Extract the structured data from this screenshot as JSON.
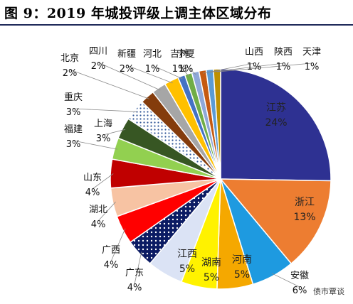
{
  "header": {
    "title": "图 9：2019 年城投评级上调主体区域分布"
  },
  "watermark": "债市覃谈",
  "chart_data": {
    "type": "pie",
    "title": "图 9：2019 年城投评级上调主体区域分布",
    "slices": [
      {
        "label": "江苏",
        "pct_text": "24%",
        "value": 24,
        "color": "#2e3192"
      },
      {
        "label": "浙江",
        "pct_text": "13%",
        "value": 13,
        "color": "#ed7d31"
      },
      {
        "label": "安徽",
        "pct_text": "6%",
        "value": 6,
        "color": "#1e9ae0"
      },
      {
        "label": "河南",
        "pct_text": "5%",
        "value": 5,
        "color": "#f5a800"
      },
      {
        "label": "湖南",
        "pct_text": "5%",
        "value": 5,
        "color": "#fff200"
      },
      {
        "label": "江西",
        "pct_text": "5%",
        "value": 5,
        "color": "#dbe3f5"
      },
      {
        "label": "广东",
        "pct_text": "4%",
        "value": 4,
        "color": "#0b1b63",
        "pattern": "dots"
      },
      {
        "label": "广西",
        "pct_text": "4%",
        "value": 4,
        "color": "#ff0000"
      },
      {
        "label": "湖北",
        "pct_text": "4%",
        "value": 4,
        "color": "#f7c3a3"
      },
      {
        "label": "山东",
        "pct_text": "4%",
        "value": 4,
        "color": "#c00000"
      },
      {
        "label": "福建",
        "pct_text": "3%",
        "value": 3,
        "color": "#92d050"
      },
      {
        "label": "上海",
        "pct_text": "3%",
        "value": 3,
        "color": "#375623"
      },
      {
        "label": "重庆",
        "pct_text": "3%",
        "value": 3,
        "color": "#ffffff",
        "pattern": "dots-blue"
      },
      {
        "label": "北京",
        "pct_text": "2%",
        "value": 2,
        "color": "#843c0c"
      },
      {
        "label": "四川",
        "pct_text": "2%",
        "value": 2,
        "color": "#a6a6a6"
      },
      {
        "label": "新疆",
        "pct_text": "2%",
        "value": 2,
        "color": "#ffc000"
      },
      {
        "label": "河北",
        "pct_text": "1%",
        "value": 1,
        "color": "#4472c4"
      },
      {
        "label": "吉林",
        "pct_text": "1%",
        "value": 1,
        "color": "#70ad47"
      },
      {
        "label": "宁夏",
        "pct_text": "1%",
        "value": 1,
        "color": "#8fa8d8"
      },
      {
        "label": "山西",
        "pct_text": "1%",
        "value": 1,
        "color": "#c55a11"
      },
      {
        "label": "陕西",
        "pct_text": "1%",
        "value": 1,
        "color": "#5b9bd5"
      },
      {
        "label": "天津",
        "pct_text": "1%",
        "value": 1,
        "color": "#bf9000"
      }
    ]
  }
}
